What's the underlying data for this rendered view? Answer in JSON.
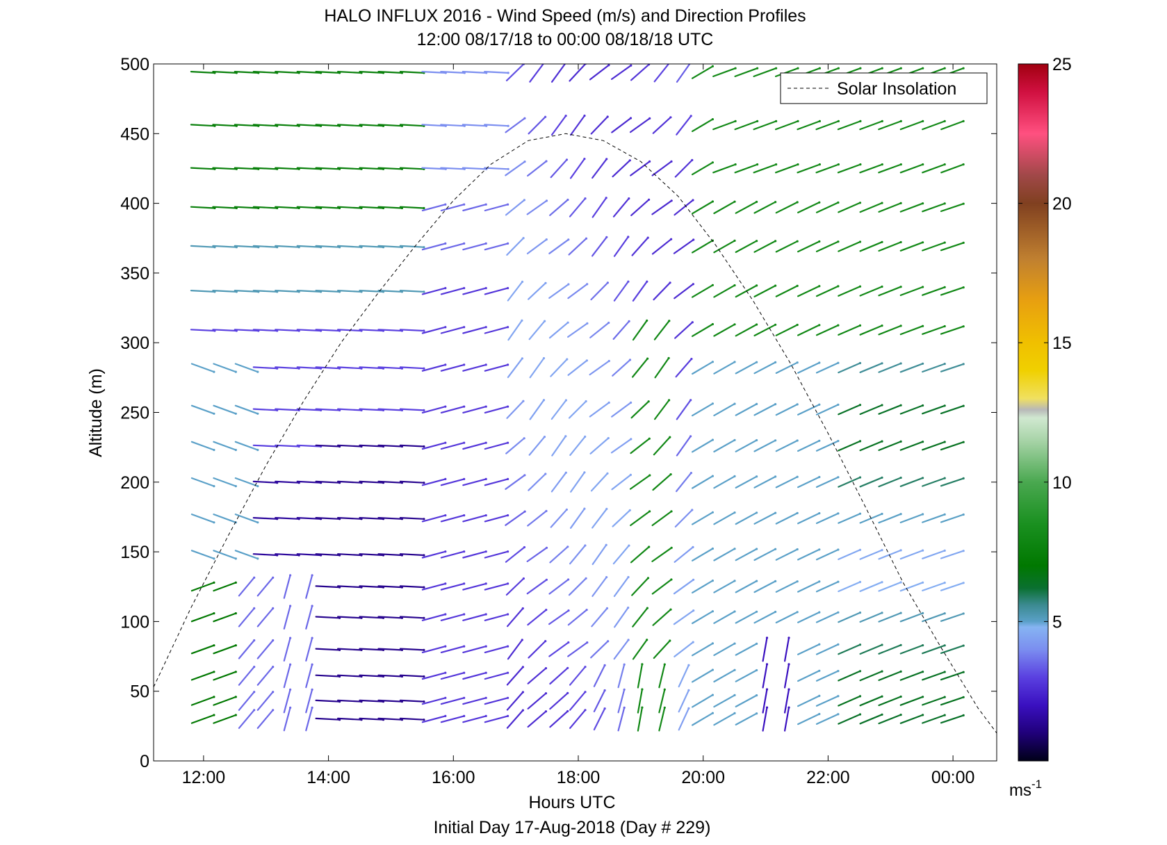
{
  "chart_data": {
    "type": "scatter",
    "title": "HALO INFLUX 2016 - Wind Speed (m/s) and Direction Profiles",
    "subtitle": "12:00 08/17/18 to 00:00 08/18/18  UTC",
    "xlabel": "Hours UTC",
    "footer": "Initial Day 17-Aug-2018 (Day # 229)",
    "ylabel": "Altitude (m)",
    "xlim": [
      11.2,
      24.7
    ],
    "ylim": [
      0,
      500
    ],
    "x_ticks": [
      12,
      14,
      16,
      18,
      20,
      22,
      24
    ],
    "x_tick_labels": [
      "12:00",
      "14:00",
      "16:00",
      "18:00",
      "20:00",
      "22:00",
      "00:00"
    ],
    "y_ticks": [
      0,
      50,
      100,
      150,
      200,
      250,
      300,
      350,
      400,
      450,
      500
    ],
    "y_tick_labels": [
      "0",
      "50",
      "100",
      "150",
      "200",
      "250",
      "300",
      "350",
      "400",
      "450",
      "500"
    ],
    "grid": false,
    "legend": {
      "placement": "top-right",
      "entries": [
        {
          "label": "Solar Insolation",
          "style": "dashed",
          "color": "#000000"
        }
      ]
    },
    "colorbar": {
      "min": 0,
      "max": 25,
      "ticks": [
        5,
        10,
        15,
        20,
        25
      ],
      "tick_labels": [
        "5",
        "10",
        "15",
        "20",
        "25"
      ],
      "unit_base": "ms",
      "unit_exp": "-1",
      "stops": [
        {
          "v": 0,
          "c": "#000018"
        },
        {
          "v": 1,
          "c": "#20007a"
        },
        {
          "v": 2,
          "c": "#3a10c0"
        },
        {
          "v": 3,
          "c": "#5a40e0"
        },
        {
          "v": 4,
          "c": "#7b8ef0"
        },
        {
          "v": 4.8,
          "c": "#86b4f2"
        },
        {
          "v": 5,
          "c": "#5aa0c8"
        },
        {
          "v": 5.6,
          "c": "#3b8a90"
        },
        {
          "v": 6.2,
          "c": "#0a7030"
        },
        {
          "v": 7,
          "c": "#007800"
        },
        {
          "v": 8.5,
          "c": "#1a9020"
        },
        {
          "v": 10,
          "c": "#4aa850"
        },
        {
          "v": 11.5,
          "c": "#a8d4a8"
        },
        {
          "v": 12.3,
          "c": "#d0e8d0"
        },
        {
          "v": 12.6,
          "c": "#b8b8b8"
        },
        {
          "v": 13,
          "c": "#f0e060"
        },
        {
          "v": 14,
          "c": "#f0d000"
        },
        {
          "v": 15,
          "c": "#f0c000"
        },
        {
          "v": 16.5,
          "c": "#e8a010"
        },
        {
          "v": 18,
          "c": "#c08030"
        },
        {
          "v": 20,
          "c": "#804020"
        },
        {
          "v": 21,
          "c": "#a04848"
        },
        {
          "v": 22.5,
          "c": "#ff5080"
        },
        {
          "v": 24,
          "c": "#d01040"
        },
        {
          "v": 25,
          "c": "#a00010"
        }
      ]
    },
    "solar_insolation": {
      "x": [
        11.2,
        11.8,
        12.4,
        13.0,
        13.6,
        14.2,
        14.8,
        15.4,
        16.0,
        16.6,
        17.2,
        17.8,
        18.4,
        19.0,
        19.6,
        20.2,
        20.8,
        21.4,
        22.0,
        22.6,
        23.2,
        23.8,
        24.4,
        24.7
      ],
      "y": [
        53,
        110,
        162,
        212,
        258,
        300,
        336,
        370,
        402,
        428,
        445,
        450,
        445,
        430,
        405,
        370,
        330,
        285,
        235,
        182,
        128,
        82,
        38,
        20
      ]
    },
    "wind_profiles": {
      "description_levels_m": [
        30,
        43,
        61,
        80,
        103,
        125,
        148,
        174,
        200,
        226,
        252,
        282,
        309,
        337,
        369,
        397,
        425,
        456,
        494
      ],
      "times_h": [
        11.8,
        12.15,
        12.5,
        12.8,
        13.15,
        13.5,
        13.8,
        14.15,
        14.5,
        14.8,
        15.15,
        15.5,
        15.8,
        16.15,
        16.5,
        16.8,
        17.15,
        17.5,
        17.8,
        18.15,
        18.5,
        18.8,
        19.15,
        19.5,
        19.8,
        20.15,
        20.5,
        20.8,
        21.15,
        21.5,
        21.8,
        22.15,
        22.5,
        22.8,
        23.15,
        23.5,
        23.8
      ]
    }
  }
}
